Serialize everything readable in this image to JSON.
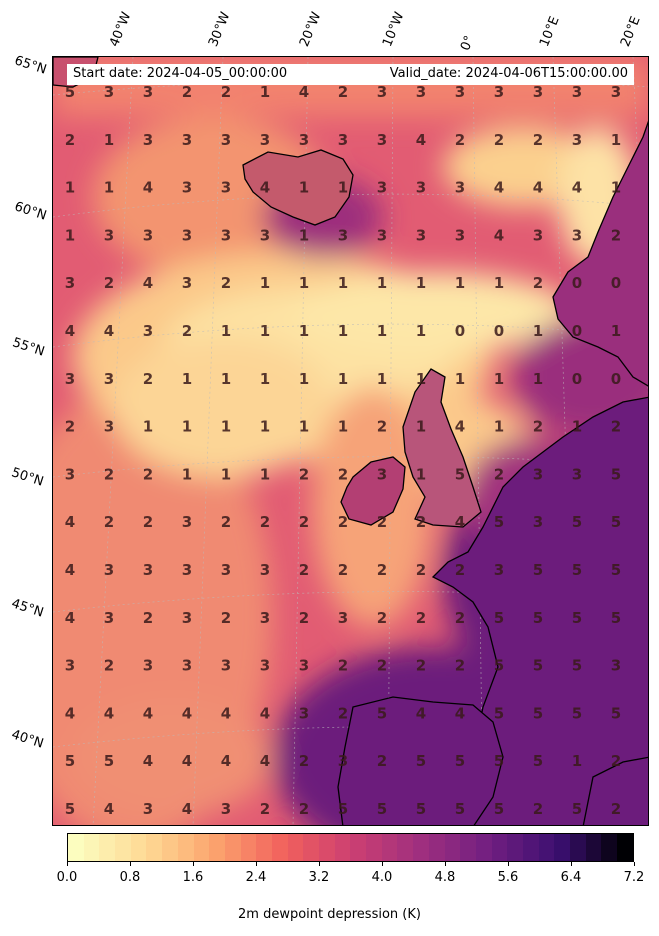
{
  "header": {
    "start_date": "Start date: 2024-04-05_00:00:00",
    "valid_date": "Valid_date: 2024-04-06T15:00:00.00"
  },
  "axes": {
    "lon_labels": [
      "40°W",
      "30°W",
      "20°W",
      "10°W",
      "0°",
      "10°E",
      "20°E"
    ],
    "lat_labels": [
      "65°N",
      "60°N",
      "55°N",
      "50°N",
      "45°N",
      "40°N"
    ]
  },
  "map": {
    "variable": "2m dewpoint depression",
    "grid_values": [
      [
        5,
        3,
        3,
        2,
        2,
        1,
        4,
        2,
        3,
        3,
        3,
        3,
        3,
        3,
        3
      ],
      [
        2,
        1,
        3,
        3,
        3,
        3,
        3,
        3,
        3,
        4,
        2,
        2,
        2,
        3,
        1
      ],
      [
        1,
        1,
        4,
        3,
        3,
        4,
        1,
        1,
        3,
        3,
        3,
        4,
        4,
        4,
        1
      ],
      [
        1,
        3,
        3,
        3,
        3,
        3,
        1,
        3,
        3,
        3,
        3,
        4,
        3,
        3,
        2
      ],
      [
        3,
        2,
        4,
        3,
        2,
        1,
        1,
        1,
        1,
        1,
        1,
        1,
        2,
        0,
        0
      ],
      [
        4,
        4,
        3,
        2,
        1,
        1,
        1,
        1,
        1,
        1,
        0,
        0,
        1,
        0,
        1
      ],
      [
        3,
        3,
        2,
        1,
        1,
        1,
        1,
        1,
        1,
        1,
        1,
        1,
        1,
        0,
        0
      ],
      [
        2,
        3,
        1,
        1,
        1,
        1,
        1,
        1,
        2,
        1,
        4,
        1,
        2,
        1,
        2
      ],
      [
        3,
        2,
        2,
        1,
        1,
        1,
        2,
        2,
        3,
        1,
        5,
        2,
        3,
        3,
        5
      ],
      [
        4,
        2,
        2,
        3,
        2,
        2,
        2,
        2,
        2,
        2,
        4,
        5,
        3,
        5,
        5
      ],
      [
        4,
        3,
        3,
        3,
        3,
        3,
        2,
        2,
        2,
        2,
        2,
        3,
        5,
        5,
        5
      ],
      [
        4,
        3,
        2,
        3,
        2,
        3,
        2,
        3,
        2,
        2,
        2,
        5,
        5,
        5,
        5
      ],
      [
        3,
        2,
        3,
        3,
        3,
        3,
        3,
        2,
        2,
        2,
        2,
        5,
        5,
        5,
        3
      ],
      [
        4,
        4,
        4,
        4,
        4,
        4,
        3,
        2,
        5,
        4,
        4,
        5,
        5,
        5,
        5
      ],
      [
        5,
        5,
        4,
        4,
        4,
        4,
        2,
        3,
        2,
        5,
        5,
        5,
        5,
        1,
        2
      ],
      [
        5,
        4,
        3,
        4,
        3,
        2,
        2,
        5,
        5,
        5,
        5,
        5,
        2,
        5,
        2
      ]
    ],
    "colors": {
      "moist": "#fde7a8",
      "mid": "#f3746a",
      "dry": "#6c1c7c",
      "land_outline": "#000000",
      "label_color": "#3a1a1a"
    }
  },
  "colorbar": {
    "title": "2m dewpoint depression (K)",
    "min": 0.0,
    "max": 7.2,
    "ticks": [
      "0.0",
      "0.8",
      "1.6",
      "2.4",
      "3.2",
      "4.0",
      "4.8",
      "5.6",
      "6.4",
      "7.2"
    ],
    "palette": "magma_r"
  }
}
